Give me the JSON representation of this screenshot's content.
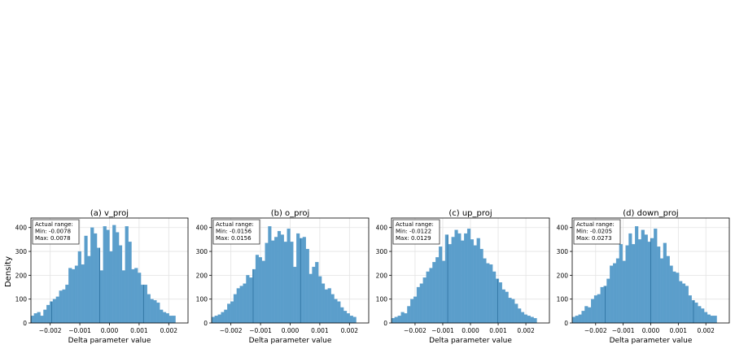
{
  "figure": {
    "ylabel": "Density",
    "xlabel": "Delta parameter value"
  },
  "colors": {
    "bar": "#5b9ecb",
    "bar_edge": "#4d8fbe",
    "line": "#2a6f9e",
    "grid": "#e3e3e3"
  },
  "chart_data": [
    {
      "type": "bar",
      "title": "(a) v_proj",
      "xlabel": "Delta parameter value",
      "ylabel": "Density",
      "xlim": [
        -0.00265,
        0.00265
      ],
      "ylim": [
        0,
        440
      ],
      "xticks": [
        -0.002,
        -0.001,
        0.0,
        0.001,
        0.002
      ],
      "xtick_labels": [
        "−0.002",
        "−0.001",
        "0.000",
        "0.001",
        "0.002"
      ],
      "yticks": [
        0,
        100,
        200,
        300,
        400
      ],
      "ytick_labels": [
        "0",
        "100",
        "200",
        "300",
        "400"
      ],
      "grid": true,
      "annotation": [
        "Actual range:",
        "Min: -0.0078",
        "Max: 0.0078"
      ],
      "vlines": [
        -0.00195,
        -0.00033,
        0.00115
      ],
      "x_start": -0.00265,
      "bin_width": 0.000106,
      "values": [
        30,
        40,
        45,
        30,
        55,
        75,
        90,
        100,
        110,
        135,
        140,
        160,
        230,
        225,
        240,
        300,
        245,
        365,
        280,
        400,
        375,
        315,
        220,
        405,
        390,
        300,
        410,
        380,
        325,
        220,
        405,
        340,
        225,
        230,
        210,
        160,
        160,
        120,
        100,
        95,
        85,
        55,
        45,
        40,
        30,
        30
      ]
    },
    {
      "type": "bar",
      "title": "(b) o_proj",
      "xlabel": "Delta parameter value",
      "ylabel": "",
      "xlim": [
        -0.00265,
        0.00265
      ],
      "ylim": [
        0,
        440
      ],
      "xticks": [
        -0.002,
        -0.001,
        0.0,
        0.001,
        0.002
      ],
      "xtick_labels": [
        "−0.002",
        "−0.001",
        "0.000",
        "0.001",
        "0.002"
      ],
      "yticks": [
        0,
        100,
        200,
        300,
        400
      ],
      "ytick_labels": [
        "0",
        "100",
        "200",
        "300",
        "400"
      ],
      "grid": true,
      "annotation": [
        "Actual range:",
        "Min: -0.0156",
        "Max: 0.0156"
      ],
      "vlines": [
        -0.00125,
        0.00035
      ],
      "x_start": -0.00265,
      "bin_width": 0.000106,
      "values": [
        25,
        30,
        35,
        45,
        55,
        80,
        90,
        120,
        145,
        155,
        165,
        200,
        190,
        225,
        285,
        275,
        260,
        335,
        405,
        345,
        360,
        385,
        370,
        340,
        395,
        340,
        235,
        375,
        355,
        360,
        310,
        205,
        235,
        255,
        195,
        165,
        140,
        145,
        120,
        100,
        90,
        65,
        50,
        40,
        30,
        25
      ]
    },
    {
      "type": "bar",
      "title": "(c) up_proj",
      "xlabel": "Delta parameter value",
      "ylabel": "",
      "xlim": [
        -0.00285,
        0.00285
      ],
      "ylim": [
        0,
        440
      ],
      "xticks": [
        -0.002,
        -0.001,
        0.0,
        0.001,
        0.002
      ],
      "xtick_labels": [
        "−0.002",
        "−0.001",
        "0.000",
        "0.001",
        "0.002"
      ],
      "yticks": [
        0,
        100,
        200,
        300,
        400
      ],
      "ytick_labels": [
        "0",
        "100",
        "200",
        "300",
        "400"
      ],
      "grid": true,
      "annotation": [
        "Actual range:",
        "Min: -0.0122",
        "Max: 0.0129"
      ],
      "vlines": [
        -0.00082,
        0.00098
      ],
      "x_start": -0.00285,
      "bin_width": 0.000114,
      "values": [
        20,
        25,
        30,
        45,
        40,
        70,
        100,
        110,
        150,
        165,
        190,
        215,
        230,
        255,
        275,
        320,
        260,
        370,
        330,
        360,
        390,
        375,
        345,
        375,
        395,
        350,
        325,
        355,
        310,
        270,
        250,
        245,
        215,
        185,
        170,
        140,
        130,
        105,
        100,
        80,
        60,
        45,
        35,
        30,
        25,
        20
      ]
    },
    {
      "type": "bar",
      "title": "(d) down_proj",
      "xlabel": "Delta parameter value",
      "ylabel": "",
      "xlim": [
        -0.00285,
        0.00285
      ],
      "ylim": [
        0,
        440
      ],
      "xticks": [
        -0.002,
        -0.001,
        0.0,
        0.001,
        0.002
      ],
      "xtick_labels": [
        "−0.002",
        "−0.001",
        "0.000",
        "0.001",
        "0.002"
      ],
      "yticks": [
        0,
        100,
        200,
        300,
        400
      ],
      "ytick_labels": [
        "0",
        "100",
        "200",
        "300",
        "400"
      ],
      "grid": true,
      "annotation": [
        "Actual range:",
        "Min: -0.0205",
        "Max: 0.0273"
      ],
      "vlines": [
        -0.00165,
        0.0,
        0.00155
      ],
      "x_start": -0.00285,
      "bin_width": 0.000114,
      "values": [
        25,
        30,
        35,
        50,
        70,
        65,
        100,
        115,
        120,
        150,
        155,
        185,
        240,
        250,
        270,
        330,
        260,
        325,
        375,
        330,
        405,
        350,
        390,
        370,
        340,
        355,
        395,
        320,
        270,
        335,
        280,
        240,
        215,
        210,
        175,
        165,
        155,
        115,
        95,
        85,
        70,
        60,
        45,
        35,
        30,
        30
      ]
    }
  ]
}
